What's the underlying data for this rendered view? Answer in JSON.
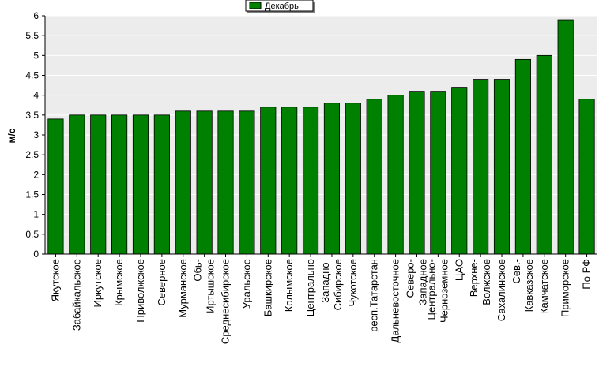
{
  "chart_data": {
    "type": "bar",
    "title": "",
    "xlabel": "",
    "ylabel": "м/с",
    "ylim": [
      0,
      6
    ],
    "yticks": [
      "0",
      "0.5",
      "1",
      "1.5",
      "2",
      "2.5",
      "3",
      "3.5",
      "4",
      "4.5",
      "5",
      "5.5",
      "6"
    ],
    "grid": "horizontal",
    "legend_position": "top-center",
    "categories": [
      "Якутское",
      "Забайкальское",
      "Иркутское",
      "Крымское",
      "Приволжское",
      "Северное",
      "Мурманское",
      "Обь-Иртышское",
      "Среднесибирское",
      "Уральское",
      "Башкирское",
      "Колымское",
      "Центрально",
      "Западно-Сибирское",
      "Чукотское",
      "респ.Татарстан",
      "Дальневосточное",
      "Северо-Западное",
      "Центрально-Черноземное",
      "ЦАО",
      "Верхне-Волжское",
      "Сахалинское",
      "Сев.-Кавказское",
      "Камчатское",
      "Приморское",
      "По РФ"
    ],
    "category_label_lines": [
      [
        "Якутское"
      ],
      [
        "Забайкальское"
      ],
      [
        "Иркутское"
      ],
      [
        "Крымское"
      ],
      [
        "Приволжское"
      ],
      [
        "Северное"
      ],
      [
        "Мурманское"
      ],
      [
        "Обь-",
        "Иртышское"
      ],
      [
        "Среднесибирское"
      ],
      [
        "Уральское"
      ],
      [
        "Башкирское"
      ],
      [
        "Колымское"
      ],
      [
        "Центрально"
      ],
      [
        "Западно-",
        "Сибирское"
      ],
      [
        "Чукотское"
      ],
      [
        "респ.Татарстан"
      ],
      [
        "Дальневосточное"
      ],
      [
        "Северо-",
        "Западное"
      ],
      [
        "Центрально-",
        "Черноземное"
      ],
      [
        "ЦАО"
      ],
      [
        "Верхне-",
        "Волжское"
      ],
      [
        "Сахалинское"
      ],
      [
        "Сев.-",
        "Кавказское"
      ],
      [
        "Камчатское"
      ],
      [
        "Приморское"
      ],
      [
        "По РФ"
      ]
    ],
    "series": [
      {
        "name": "Декабрь",
        "color": "#008000",
        "values": [
          3.4,
          3.5,
          3.5,
          3.5,
          3.5,
          3.5,
          3.6,
          3.6,
          3.6,
          3.6,
          3.7,
          3.7,
          3.7,
          3.8,
          3.8,
          3.9,
          4.0,
          4.1,
          4.1,
          4.2,
          4.4,
          4.4,
          4.9,
          5.0,
          5.9,
          3.9
        ]
      }
    ],
    "colors": {
      "plot_background": "#ececec",
      "gridline": "#ffffff",
      "bar": "#008000",
      "bar_edge": "#000000"
    }
  }
}
